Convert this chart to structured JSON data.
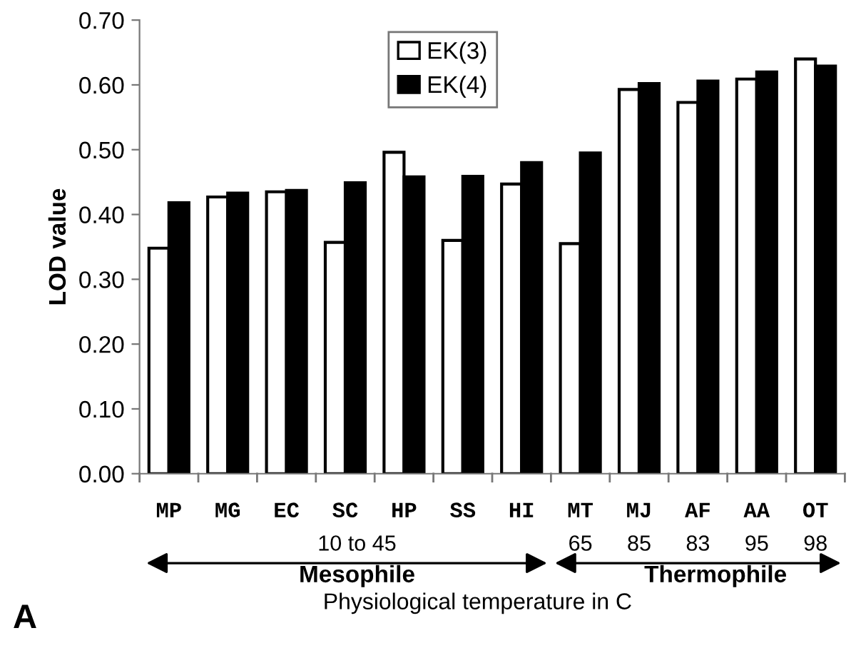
{
  "chart_data": {
    "type": "bar",
    "ylabel": "LOD value",
    "xlabel": "Physiological temperature in C",
    "categories": [
      "MP",
      "MG",
      "EC",
      "SC",
      "HP",
      "SS",
      "HI",
      "MT",
      "MJ",
      "AF",
      "AA",
      "OT"
    ],
    "series": [
      {
        "name": "EK(3)",
        "color": "#ffffff",
        "values": [
          0.348,
          0.427,
          0.435,
          0.357,
          0.496,
          0.36,
          0.447,
          0.355,
          0.593,
          0.573,
          0.609,
          0.64
        ]
      },
      {
        "name": "EK(4)",
        "color": "#000000",
        "values": [
          0.418,
          0.433,
          0.437,
          0.449,
          0.458,
          0.459,
          0.48,
          0.495,
          0.602,
          0.606,
          0.62,
          0.629
        ]
      }
    ],
    "ylim": [
      0,
      0.7
    ],
    "yticks": [
      {
        "value": 0,
        "label": "0.00"
      },
      {
        "value": 0.1,
        "label": "0.10"
      },
      {
        "value": 0.2,
        "label": "0.20"
      },
      {
        "value": 0.3,
        "label": "0.30"
      },
      {
        "value": 0.4,
        "label": "0.40"
      },
      {
        "value": 0.5,
        "label": "0.50"
      },
      {
        "value": 0.6,
        "label": "0.60"
      },
      {
        "value": 0.7,
        "label": "0.70"
      }
    ],
    "grid": false,
    "legend": "top",
    "annotations": [
      "10 to 45",
      "65",
      "85",
      "83",
      "95",
      "98",
      "Mesophile",
      "Thermophile",
      "A"
    ]
  }
}
